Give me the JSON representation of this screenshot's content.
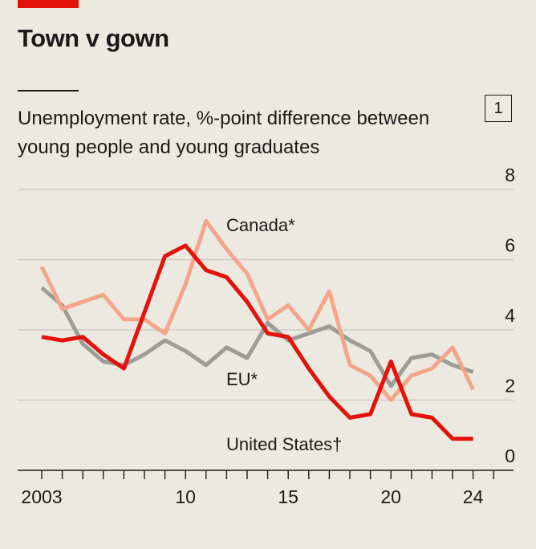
{
  "header": {
    "title": "Town v gown",
    "subtitle": "Unemployment rate, %-point difference between young people and young graduates",
    "chart_number": "1"
  },
  "colors": {
    "background": "#ece9e1",
    "accent": "#e3120b",
    "united_states": "#e3120b",
    "canada": "#f4a58a",
    "eu": "#9b9d96"
  },
  "chart_data": {
    "type": "line",
    "title": "Town v gown",
    "subtitle": "Unemployment rate, %-point difference between young people and young graduates",
    "ylim": [
      0,
      8
    ],
    "xlim": [
      2002,
      2026
    ],
    "y_ticks": [
      0,
      2,
      4,
      6,
      8
    ],
    "y_tick_labels": [
      "0",
      "2",
      "4",
      "6",
      "8"
    ],
    "y_axis_side": "right",
    "x_ticks": [
      2003,
      2010,
      2015,
      2020,
      2024
    ],
    "x_tick_labels": [
      "2003",
      "10",
      "15",
      "20",
      "24"
    ],
    "grid": true,
    "legend": "inline labels",
    "series": [
      {
        "name": "United States†",
        "color": "#e3120b",
        "x": [
          2003,
          2004,
          2005,
          2006,
          2007,
          2008,
          2009,
          2010,
          2011,
          2012,
          2013,
          2014,
          2015,
          2016,
          2017,
          2018,
          2019,
          2020,
          2021,
          2022,
          2023,
          2024
        ],
        "values": [
          3.8,
          3.7,
          3.8,
          3.3,
          2.9,
          4.5,
          6.1,
          6.4,
          5.7,
          5.5,
          4.8,
          3.9,
          3.8,
          2.9,
          2.1,
          1.5,
          1.6,
          3.1,
          1.6,
          1.5,
          0.9,
          0.9
        ]
      },
      {
        "name": "Canada*",
        "color": "#f4a58a",
        "x": [
          2003,
          2004,
          2005,
          2006,
          2007,
          2008,
          2009,
          2010,
          2011,
          2012,
          2013,
          2014,
          2015,
          2016,
          2017,
          2018,
          2019,
          2020,
          2021,
          2022,
          2023,
          2024
        ],
        "values": [
          5.8,
          4.6,
          4.8,
          5.0,
          4.3,
          4.3,
          3.9,
          5.3,
          7.1,
          6.3,
          5.6,
          4.3,
          4.7,
          4.0,
          5.1,
          3.0,
          2.7,
          2.0,
          2.7,
          2.9,
          3.5,
          2.3
        ]
      },
      {
        "name": "EU*",
        "color": "#9b9d96",
        "x": [
          2003,
          2004,
          2005,
          2006,
          2007,
          2008,
          2009,
          2010,
          2011,
          2012,
          2013,
          2014,
          2015,
          2016,
          2017,
          2018,
          2019,
          2020,
          2021,
          2022,
          2023,
          2024
        ],
        "values": [
          5.2,
          4.7,
          3.6,
          3.1,
          3.0,
          3.3,
          3.7,
          3.4,
          3.0,
          3.5,
          3.2,
          4.2,
          3.7,
          3.9,
          4.1,
          3.7,
          3.4,
          2.4,
          3.2,
          3.3,
          3.0,
          2.8
        ]
      }
    ]
  }
}
